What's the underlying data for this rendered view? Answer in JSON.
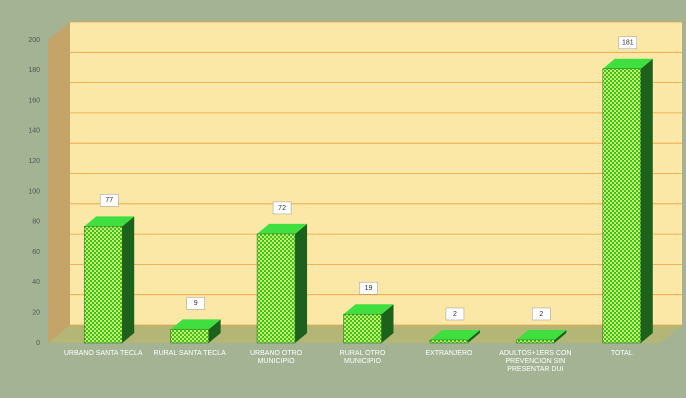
{
  "chart_data": {
    "type": "bar3d",
    "categories": [
      "URBANO SANTA TECLA",
      "RURAL SANTA TECLA",
      "URBANO OTRO MUNICIPIO",
      "RURAL OTRO MUNICIPIO",
      "EXTRANJERO",
      "ADULTOS+1ERS CON PREVENCION SIN PRESENTAR DUI",
      "TOTAL"
    ],
    "values": [
      77,
      9,
      72,
      19,
      2,
      2,
      181
    ],
    "color": "#33b233",
    "ylim": [
      0,
      200
    ],
    "yticks": [
      0,
      20,
      40,
      60,
      80,
      100,
      120,
      140,
      160,
      180,
      200
    ],
    "grid": true
  }
}
